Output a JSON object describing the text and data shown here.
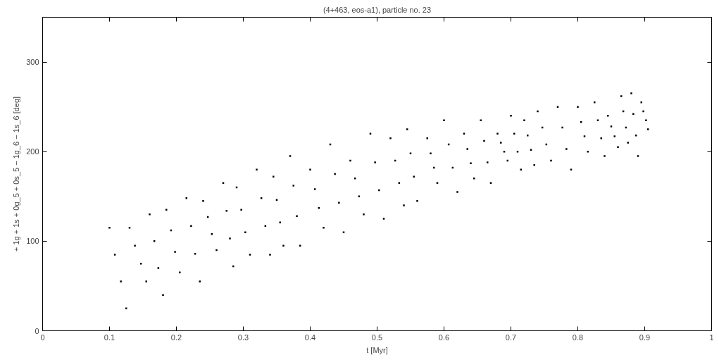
{
  "chart_data": {
    "type": "scatter",
    "title": "(4+463, eos-a1), particle no. 23",
    "xlabel": "t [Myr]",
    "ylabel": "+ 1g + 1s + 0g_5 + 0s_5 − 1g_6 − 1s_6 [deg]",
    "xlim": [
      0,
      1
    ],
    "ylim": [
      0,
      350
    ],
    "xticks": [
      0,
      0.1,
      0.2,
      0.3,
      0.4,
      0.5,
      0.6,
      0.7,
      0.8,
      0.9,
      1
    ],
    "yticks": [
      0,
      100,
      200,
      300
    ],
    "grid": false,
    "marker": "square",
    "series": [
      {
        "color": "#000000",
        "x": [
          0.1,
          0.108,
          0.117,
          0.125,
          0.13,
          0.138,
          0.147,
          0.155,
          0.16,
          0.167,
          0.173,
          0.18,
          0.185,
          0.192,
          0.198,
          0.205,
          0.215,
          0.222,
          0.228,
          0.235,
          0.24,
          0.247,
          0.253,
          0.26,
          0.27,
          0.275,
          0.28,
          0.285,
          0.29,
          0.297,
          0.303,
          0.31,
          0.32,
          0.327,
          0.333,
          0.34,
          0.345,
          0.35,
          0.355,
          0.36,
          0.37,
          0.375,
          0.38,
          0.385,
          0.4,
          0.407,
          0.413,
          0.42,
          0.43,
          0.437,
          0.443,
          0.45,
          0.46,
          0.467,
          0.473,
          0.48,
          0.49,
          0.497,
          0.503,
          0.51,
          0.52,
          0.527,
          0.533,
          0.54,
          0.545,
          0.55,
          0.555,
          0.56,
          0.575,
          0.58,
          0.585,
          0.59,
          0.6,
          0.607,
          0.613,
          0.62,
          0.63,
          0.635,
          0.64,
          0.645,
          0.655,
          0.66,
          0.665,
          0.67,
          0.68,
          0.685,
          0.69,
          0.695,
          0.7,
          0.705,
          0.71,
          0.715,
          0.72,
          0.725,
          0.73,
          0.735,
          0.74,
          0.747,
          0.753,
          0.76,
          0.77,
          0.777,
          0.783,
          0.79,
          0.8,
          0.805,
          0.81,
          0.815,
          0.825,
          0.83,
          0.835,
          0.84,
          0.845,
          0.85,
          0.855,
          0.86,
          0.865,
          0.868,
          0.872,
          0.875,
          0.88,
          0.883,
          0.887,
          0.89,
          0.895,
          0.898,
          0.902,
          0.905
        ],
        "values": [
          115,
          85,
          55,
          25,
          115,
          95,
          75,
          55,
          130,
          100,
          70,
          40,
          135,
          112,
          88,
          65,
          148,
          117,
          86,
          55,
          145,
          127,
          108,
          90,
          165,
          134,
          103,
          72,
          160,
          135,
          110,
          85,
          180,
          148,
          117,
          85,
          172,
          146,
          121,
          95,
          195,
          162,
          128,
          95,
          180,
          158,
          137,
          115,
          208,
          175,
          143,
          110,
          190,
          170,
          150,
          130,
          220,
          188,
          157,
          125,
          215,
          190,
          165,
          140,
          225,
          198,
          172,
          145,
          215,
          198,
          182,
          165,
          235,
          208,
          182,
          155,
          220,
          203,
          187,
          170,
          235,
          212,
          188,
          165,
          220,
          210,
          200,
          190,
          240,
          220,
          200,
          180,
          235,
          218,
          202,
          185,
          245,
          227,
          208,
          190,
          250,
          227,
          203,
          180,
          250,
          233,
          217,
          200,
          255,
          235,
          215,
          195,
          240,
          228,
          217,
          205,
          262,
          245,
          227,
          210,
          265,
          242,
          218,
          195,
          255,
          245,
          235,
          225
        ]
      }
    ]
  }
}
